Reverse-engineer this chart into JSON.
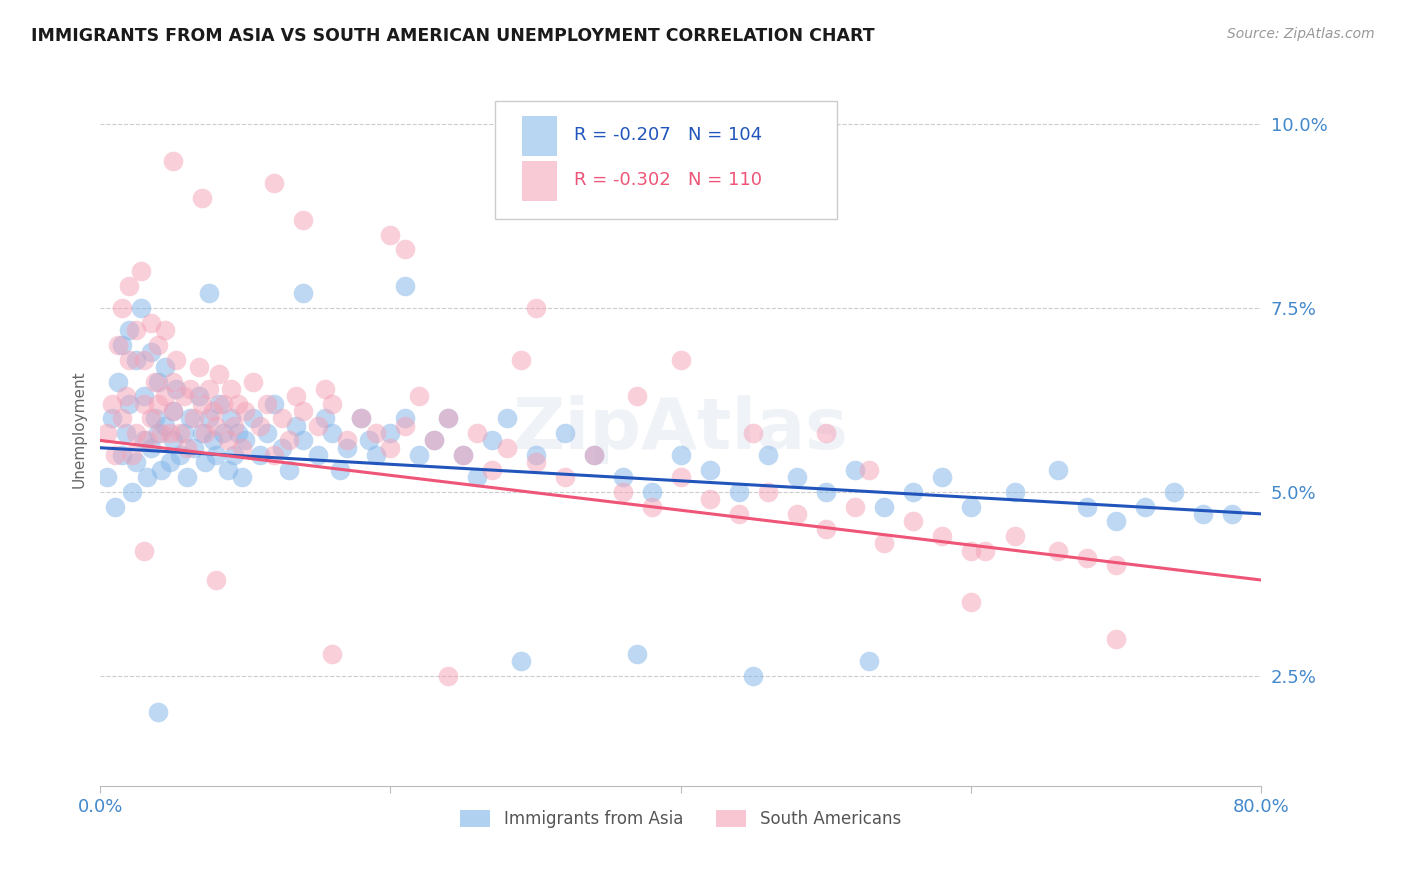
{
  "title": "IMMIGRANTS FROM ASIA VS SOUTH AMERICAN UNEMPLOYMENT CORRELATION CHART",
  "source": "Source: ZipAtlas.com",
  "ylabel": "Unemployment",
  "yticks": [
    0.025,
    0.05,
    0.075,
    0.1
  ],
  "ytick_labels": [
    "2.5%",
    "5.0%",
    "7.5%",
    "10.0%"
  ],
  "xlim": [
    0.0,
    0.8
  ],
  "ylim": [
    0.01,
    0.107
  ],
  "legend_blue_r": "-0.207",
  "legend_blue_n": "104",
  "legend_pink_r": "-0.302",
  "legend_pink_n": "110",
  "blue_color": "#7EB3E8",
  "pink_color": "#F4A0B5",
  "trend_blue_color": "#2255BB",
  "trend_pink_color": "#EE5577",
  "axis_label_color": "#4488CC",
  "background_color": "#FFFFFF",
  "watermark": "ZipAtlas",
  "blue_trend_x0": 0.0,
  "blue_trend_y0": 0.056,
  "blue_trend_x1": 0.8,
  "blue_trend_y1": 0.047,
  "pink_trend_x0": 0.0,
  "pink_trend_y0": 0.057,
  "pink_trend_x1": 0.8,
  "pink_trend_y1": 0.038,
  "blue_scatter_x": [
    0.005,
    0.008,
    0.01,
    0.012,
    0.015,
    0.015,
    0.018,
    0.02,
    0.02,
    0.022,
    0.025,
    0.025,
    0.028,
    0.03,
    0.03,
    0.032,
    0.035,
    0.035,
    0.038,
    0.04,
    0.04,
    0.042,
    0.045,
    0.045,
    0.048,
    0.05,
    0.05,
    0.052,
    0.055,
    0.058,
    0.06,
    0.062,
    0.065,
    0.068,
    0.07,
    0.072,
    0.075,
    0.078,
    0.08,
    0.082,
    0.085,
    0.088,
    0.09,
    0.092,
    0.095,
    0.098,
    0.1,
    0.105,
    0.11,
    0.115,
    0.12,
    0.125,
    0.13,
    0.135,
    0.14,
    0.15,
    0.155,
    0.16,
    0.165,
    0.17,
    0.18,
    0.185,
    0.19,
    0.2,
    0.21,
    0.22,
    0.23,
    0.24,
    0.25,
    0.26,
    0.27,
    0.28,
    0.3,
    0.32,
    0.34,
    0.36,
    0.38,
    0.4,
    0.42,
    0.44,
    0.46,
    0.48,
    0.5,
    0.52,
    0.54,
    0.56,
    0.58,
    0.6,
    0.63,
    0.66,
    0.68,
    0.7,
    0.72,
    0.74,
    0.76,
    0.78,
    0.53,
    0.45,
    0.37,
    0.29,
    0.21,
    0.14,
    0.075,
    0.04
  ],
  "blue_scatter_y": [
    0.052,
    0.06,
    0.048,
    0.065,
    0.055,
    0.07,
    0.058,
    0.062,
    0.072,
    0.05,
    0.068,
    0.054,
    0.075,
    0.057,
    0.063,
    0.052,
    0.069,
    0.056,
    0.06,
    0.058,
    0.065,
    0.053,
    0.059,
    0.067,
    0.054,
    0.061,
    0.057,
    0.064,
    0.055,
    0.058,
    0.052,
    0.06,
    0.056,
    0.063,
    0.058,
    0.054,
    0.06,
    0.057,
    0.055,
    0.062,
    0.058,
    0.053,
    0.06,
    0.055,
    0.058,
    0.052,
    0.057,
    0.06,
    0.055,
    0.058,
    0.062,
    0.056,
    0.053,
    0.059,
    0.057,
    0.055,
    0.06,
    0.058,
    0.053,
    0.056,
    0.06,
    0.057,
    0.055,
    0.058,
    0.06,
    0.055,
    0.057,
    0.06,
    0.055,
    0.052,
    0.057,
    0.06,
    0.055,
    0.058,
    0.055,
    0.052,
    0.05,
    0.055,
    0.053,
    0.05,
    0.055,
    0.052,
    0.05,
    0.053,
    0.048,
    0.05,
    0.052,
    0.048,
    0.05,
    0.053,
    0.048,
    0.046,
    0.048,
    0.05,
    0.047,
    0.047,
    0.027,
    0.025,
    0.028,
    0.027,
    0.078,
    0.077,
    0.077,
    0.02
  ],
  "pink_scatter_x": [
    0.005,
    0.008,
    0.01,
    0.012,
    0.015,
    0.015,
    0.018,
    0.02,
    0.02,
    0.022,
    0.025,
    0.025,
    0.028,
    0.03,
    0.03,
    0.032,
    0.035,
    0.035,
    0.038,
    0.04,
    0.04,
    0.042,
    0.045,
    0.045,
    0.048,
    0.05,
    0.05,
    0.052,
    0.055,
    0.058,
    0.06,
    0.062,
    0.065,
    0.068,
    0.07,
    0.072,
    0.075,
    0.078,
    0.08,
    0.082,
    0.085,
    0.088,
    0.09,
    0.092,
    0.095,
    0.098,
    0.1,
    0.105,
    0.11,
    0.115,
    0.12,
    0.125,
    0.13,
    0.135,
    0.14,
    0.15,
    0.155,
    0.16,
    0.17,
    0.18,
    0.19,
    0.2,
    0.21,
    0.22,
    0.23,
    0.24,
    0.25,
    0.26,
    0.27,
    0.28,
    0.3,
    0.32,
    0.34,
    0.36,
    0.38,
    0.4,
    0.42,
    0.44,
    0.46,
    0.48,
    0.5,
    0.52,
    0.54,
    0.56,
    0.58,
    0.6,
    0.63,
    0.66,
    0.68,
    0.7,
    0.07,
    0.14,
    0.21,
    0.29,
    0.37,
    0.45,
    0.53,
    0.61,
    0.05,
    0.12,
    0.2,
    0.3,
    0.4,
    0.5,
    0.6,
    0.7,
    0.03,
    0.08,
    0.16,
    0.24
  ],
  "pink_scatter_y": [
    0.058,
    0.062,
    0.055,
    0.07,
    0.06,
    0.075,
    0.063,
    0.068,
    0.078,
    0.055,
    0.072,
    0.058,
    0.08,
    0.062,
    0.068,
    0.057,
    0.073,
    0.06,
    0.065,
    0.062,
    0.07,
    0.058,
    0.063,
    0.072,
    0.058,
    0.065,
    0.061,
    0.068,
    0.058,
    0.063,
    0.056,
    0.064,
    0.06,
    0.067,
    0.062,
    0.058,
    0.064,
    0.061,
    0.059,
    0.066,
    0.062,
    0.057,
    0.064,
    0.059,
    0.062,
    0.056,
    0.061,
    0.065,
    0.059,
    0.062,
    0.055,
    0.06,
    0.057,
    0.063,
    0.061,
    0.059,
    0.064,
    0.062,
    0.057,
    0.06,
    0.058,
    0.056,
    0.059,
    0.063,
    0.057,
    0.06,
    0.055,
    0.058,
    0.053,
    0.056,
    0.054,
    0.052,
    0.055,
    0.05,
    0.048,
    0.052,
    0.049,
    0.047,
    0.05,
    0.047,
    0.045,
    0.048,
    0.043,
    0.046,
    0.044,
    0.042,
    0.044,
    0.042,
    0.041,
    0.04,
    0.09,
    0.087,
    0.083,
    0.068,
    0.063,
    0.058,
    0.053,
    0.042,
    0.095,
    0.092,
    0.085,
    0.075,
    0.068,
    0.058,
    0.035,
    0.03,
    0.042,
    0.038,
    0.028,
    0.025
  ]
}
